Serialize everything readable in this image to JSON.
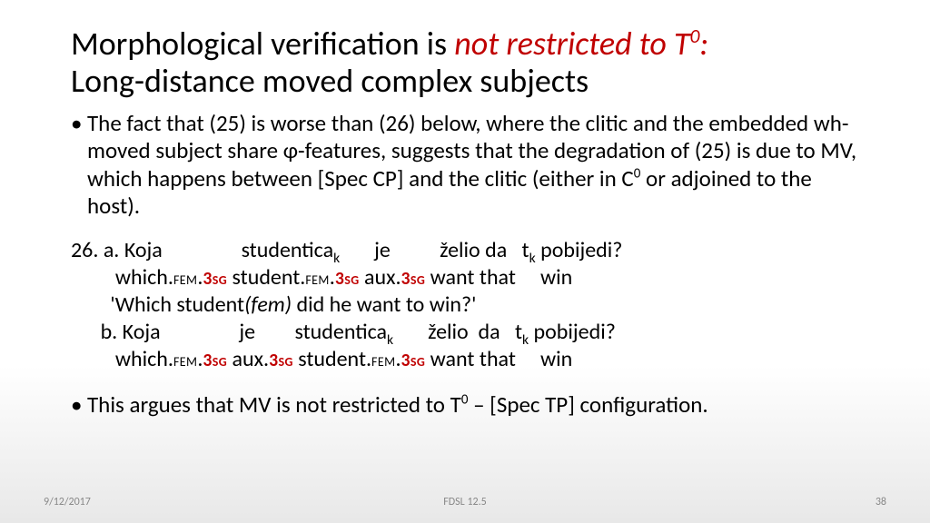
{
  "title": {
    "part1": "Morphological verification is ",
    "red": "not restricted to T",
    "sup": "0",
    "colon": ":",
    "part2": "Long-distance moved complex subjects"
  },
  "bullet1": {
    "a": "The fact that (25) is worse than (26) below, where the clitic and the embedded wh-moved subject share φ-features, suggests that the degradation of (25) is due to MV, which happens between [Spec CP] and the clitic (either in C",
    "sup": "0",
    "b": " or adjoined to the host)."
  },
  "example": {
    "num": "26. a.",
    "line1": {
      "w1": "Koja",
      "w2": "studentica",
      "sub1": "k",
      "w3": "je",
      "w4": "želio",
      "w5": "da",
      "w6": "t",
      "sub2": "k",
      "w7": "pobijedi?"
    },
    "gloss1": {
      "w1": "which.",
      "f1": "fem",
      "d1": ".",
      "s1": "3sg",
      "w2": " student.",
      "f2": "fem",
      "d2": ".",
      "s2": "3sg",
      "w3": " aux.",
      "s3": "3sg",
      "w4": " want",
      "w5": "that",
      "w6": "win"
    },
    "trans": "'Which student",
    "trans_ital": "(fem)",
    "trans2": " did he want to win?'",
    "numb": "b.",
    "line2": {
      "w1": "Koja",
      "w2": "je",
      "w3": "studentica",
      "sub1": "k",
      "w4": "želio",
      "w5": "da",
      "w6": "t",
      "sub2": "k",
      "w7": "pobijedi?"
    },
    "gloss2": {
      "w1": "which.",
      "f1": "fem",
      "d1": ".",
      "s1": "3sg",
      "w2": " aux.",
      "s2": "3sg",
      "w3": " student.",
      "f2": "fem",
      "d2": ".",
      "s3": "3sg",
      "w4": " want",
      "w5": "that",
      "w6": "win"
    }
  },
  "bullet2": {
    "a": "This argues that MV is not restricted to T",
    "sup": "0",
    "b": " – [Spec TP] configuration."
  },
  "footer": {
    "date": "9/12/2017",
    "center": "FDSL 12.5",
    "page": "38"
  },
  "colors": {
    "red": "#c00000",
    "footer": "#888888"
  }
}
